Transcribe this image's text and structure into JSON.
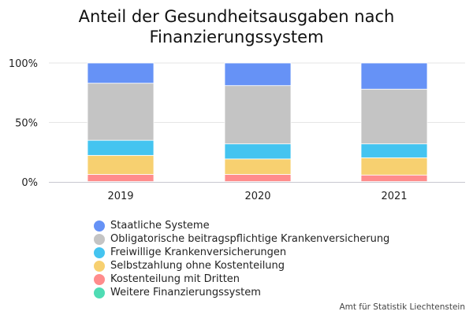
{
  "chart_data": {
    "type": "bar",
    "stacked": true,
    "title": "Anteil der Gesundheitsausgaben nach Finanzierungssystem",
    "categories": [
      "2019",
      "2020",
      "2021"
    ],
    "y_ticks": [
      "0%",
      "50%",
      "100%"
    ],
    "ylim": [
      0,
      100
    ],
    "grid": true,
    "legend_position": "bottom-left",
    "series": [
      {
        "name": "Weitere Finanzierungssystem",
        "color": "#4fdcb4",
        "values": [
          0.3,
          0.3,
          0.3
        ]
      },
      {
        "name": "Kostenteilung mit Dritten",
        "color": "#ff8c8c",
        "values": [
          6,
          6,
          5.5
        ]
      },
      {
        "name": "Selbstzahlung ohne Kostenteilung",
        "color": "#f7d070",
        "values": [
          16,
          13,
          14.5
        ]
      },
      {
        "name": "Freiwillige Krankenversicherungen",
        "color": "#44c4f0",
        "values": [
          12.7,
          12.7,
          11.7
        ]
      },
      {
        "name": "Obligatorische beitragspflichtige Krankenversicherung",
        "color": "#c4c4c4",
        "values": [
          48,
          49,
          46
        ]
      },
      {
        "name": "Staatliche Systeme",
        "color": "#6692f6",
        "values": [
          17,
          19,
          22
        ]
      }
    ]
  },
  "legend": [
    {
      "label": "Staatliche Systeme",
      "color": "#6692f6"
    },
    {
      "label": "Obligatorische beitragspflichtige Krankenversicherung",
      "color": "#c4c4c4"
    },
    {
      "label": "Freiwillige Krankenversicherungen",
      "color": "#44c4f0"
    },
    {
      "label": "Selbstzahlung ohne Kostenteilung",
      "color": "#f7d070"
    },
    {
      "label": "Kostenteilung mit Dritten",
      "color": "#ff8c8c"
    },
    {
      "label": "Weitere Finanzierungssystem",
      "color": "#4fdcb4"
    }
  ],
  "source": "Amt für Statistik Liechtenstein"
}
